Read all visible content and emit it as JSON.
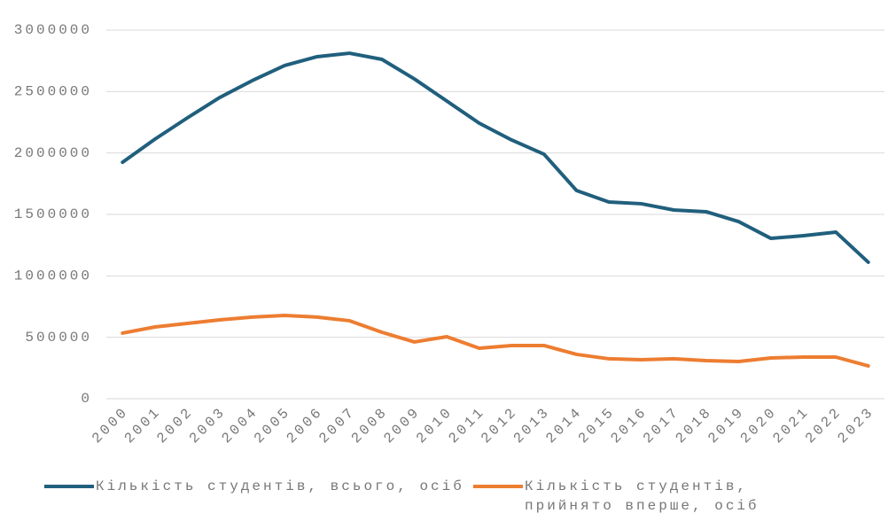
{
  "chart_data": {
    "type": "line",
    "categories": [
      "2000",
      "2001",
      "2002",
      "2003",
      "2004",
      "2005",
      "2006",
      "2007",
      "2008",
      "2009",
      "2010",
      "2011",
      "2012",
      "2013",
      "2014",
      "2015",
      "2016",
      "2017",
      "2018",
      "2019",
      "2020",
      "2021",
      "2022",
      "2023"
    ],
    "series": [
      {
        "name": "Кількість студентів, всього, осіб",
        "color": "#205f7d",
        "values": [
          1925000,
          2113000,
          2286000,
          2452000,
          2589000,
          2712000,
          2784000,
          2812000,
          2762000,
          2603000,
          2423000,
          2243000,
          2106000,
          1990000,
          1695000,
          1601000,
          1587000,
          1536000,
          1522000,
          1442000,
          1305000,
          1327000,
          1356000,
          1111000
        ]
      },
      {
        "name": "Кількість студентів, прийнято вперше, осіб",
        "color": "#ed7d31",
        "values": [
          534000,
          584000,
          613000,
          642000,
          664000,
          678000,
          664000,
          635000,
          541000,
          462000,
          505000,
          411000,
          433000,
          433000,
          361000,
          325000,
          317000,
          325000,
          310000,
          303000,
          332000,
          339000,
          339000,
          267000
        ]
      }
    ],
    "ylim": [
      0,
      3000000
    ],
    "yticks": [
      0,
      500000,
      1000000,
      1500000,
      2000000,
      2500000,
      3000000
    ],
    "grid": true
  }
}
